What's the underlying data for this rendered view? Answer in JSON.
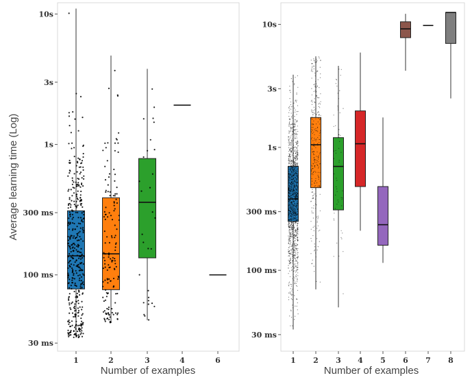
{
  "chart_data": [
    {
      "type": "box",
      "scale": "log",
      "ylabel": "Average learning time (Log)",
      "xlabel": "Number of examples",
      "ylim": [
        0.026,
        12.2
      ],
      "yticks": [
        {
          "label": "10s",
          "value": 10
        },
        {
          "label": "3s",
          "value": 3
        },
        {
          "label": "1s",
          "value": 1
        },
        {
          "label": "300 ms",
          "value": 0.3
        },
        {
          "label": "100 ms",
          "value": 0.1
        },
        {
          "label": "30 ms",
          "value": 0.03
        }
      ],
      "categories": [
        "1",
        "2",
        "3",
        "4",
        "6"
      ],
      "boxes": [
        {
          "cat": "1",
          "color": "#1f77b4",
          "min": 0.033,
          "q1": 0.078,
          "median": 0.14,
          "q3": 0.31,
          "max": 11,
          "points": 420
        },
        {
          "cat": "2",
          "color": "#ff7f0e",
          "min": 0.043,
          "q1": 0.077,
          "median": 0.145,
          "q3": 0.39,
          "max": 4.8,
          "points": 150
        },
        {
          "cat": "3",
          "color": "#2ca02c",
          "min": 0.045,
          "q1": 0.135,
          "median": 0.36,
          "q3": 0.78,
          "max": 3.8,
          "points": 30
        },
        {
          "cat": "4",
          "color": "#1f77b4",
          "min": 2.0,
          "q1": 2.0,
          "median": 2.0,
          "q3": 2.0,
          "max": 2.0,
          "points": 0
        },
        {
          "cat": "6",
          "color": "#1f77b4",
          "min": 0.1,
          "q1": 0.1,
          "median": 0.1,
          "q3": 0.1,
          "max": 0.1,
          "points": 0
        }
      ]
    },
    {
      "type": "box",
      "scale": "log",
      "xlabel": "Number of examples",
      "ylim": [
        0.022,
        15
      ],
      "yticks": [
        {
          "label": "10s",
          "value": 10
        },
        {
          "label": "3s",
          "value": 3
        },
        {
          "label": "1s",
          "value": 1
        },
        {
          "label": "300 ms",
          "value": 0.3
        },
        {
          "label": "100 ms",
          "value": 0.1
        },
        {
          "label": "30 ms",
          "value": 0.03
        }
      ],
      "categories": [
        "1",
        "2",
        "3",
        "4",
        "5",
        "6",
        "7",
        "8"
      ],
      "boxes": [
        {
          "cat": "1",
          "color": "#1f77b4",
          "min": 0.033,
          "q1": 0.25,
          "median": 0.38,
          "q3": 0.7,
          "max": 3.9,
          "points": 1400
        },
        {
          "cat": "2",
          "color": "#ff7f0e",
          "min": 0.07,
          "q1": 0.47,
          "median": 1.05,
          "q3": 1.75,
          "max": 5.5,
          "points": 300
        },
        {
          "cat": "3",
          "color": "#2ca02c",
          "min": 0.05,
          "q1": 0.31,
          "median": 0.7,
          "q3": 1.2,
          "max": 4.6,
          "points": 60
        },
        {
          "cat": "4",
          "color": "#d62728",
          "min": 0.21,
          "q1": 0.48,
          "median": 1.07,
          "q3": 1.98,
          "max": 5.9,
          "points": 0
        },
        {
          "cat": "5",
          "color": "#9467bd",
          "min": 0.115,
          "q1": 0.16,
          "median": 0.235,
          "q3": 0.48,
          "max": 1.75,
          "points": 0
        },
        {
          "cat": "6",
          "color": "#8c564b",
          "min": 4.2,
          "q1": 7.8,
          "median": 9.2,
          "q3": 10.5,
          "max": 12.2,
          "points": 0
        },
        {
          "cat": "7",
          "color": "#1f77b4",
          "min": 9.8,
          "q1": 9.8,
          "median": 9.8,
          "q3": 9.8,
          "max": 9.8,
          "points": 0
        },
        {
          "cat": "8",
          "color": "#7f7f7f",
          "min": 2.5,
          "q1": 7.0,
          "median": 12.5,
          "q3": 12.5,
          "max": 12.5,
          "points": 0
        }
      ]
    }
  ]
}
